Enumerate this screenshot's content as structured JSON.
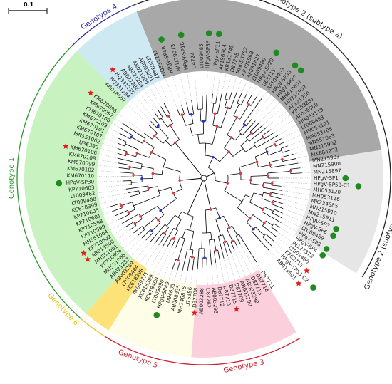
{
  "scale_bar": {
    "label": "0.1"
  },
  "sectors": [
    {
      "id": "genotype-2a",
      "from": -112,
      "to": -9,
      "fill": "#a8a8a8",
      "label": "Genotype 2 (subtype a)",
      "label_color": "#222222",
      "label_mid": -58,
      "arc_color": "#222222"
    },
    {
      "id": "genotype-2b",
      "from": -9,
      "to": 32,
      "fill": "#e6e6e6",
      "label": "Genotype 2 (subtype b)",
      "label_color": "#222222",
      "label_mid": 22,
      "arc_color": "#222222"
    },
    {
      "id": "genotype-3",
      "from": 59,
      "to": 94,
      "fill": "#fbd0dc",
      "label": "Genotype 3",
      "label_color": "#cc1f2f",
      "label_mid": 78,
      "arc_color": "#cc1f2f"
    },
    {
      "id": "genotype-5",
      "from": 94,
      "to": 122,
      "fill": "#fefde8",
      "label": "Genotype 5",
      "label_color": "#cc1f2f",
      "label_mid": 110,
      "arc_color": "#cc1f2f"
    },
    {
      "id": "genotype-6",
      "from": 122,
      "to": 131,
      "fill": "#fde27a",
      "label": "Genotype 6",
      "label_color": "#e6c619",
      "label_mid": 137,
      "arc_color": "#e6c619"
    },
    {
      "id": "genotype-1",
      "from": 131,
      "to": 225,
      "fill": "#c8f2c0",
      "label": "Genotype 1",
      "label_color": "#2a9a2a",
      "label_mid": 180,
      "arc_color": "#2a9a2a"
    },
    {
      "id": "genotype-4",
      "from": 225,
      "to": 248,
      "fill": "#cfe9f3",
      "label": "Genotype 4",
      "label_color": "#2727a8",
      "label_mid": 237,
      "arc_color": "#2727a8"
    }
  ],
  "leaves": [
    {
      "label": "HQ331233",
      "angle": -111,
      "mark": ""
    },
    {
      "label": "HPgV-SP48",
      "angle": -107,
      "mark": "circle"
    },
    {
      "label": "MH179073",
      "angle": -103,
      "mark": ""
    },
    {
      "label": "HPgV-SP18",
      "angle": -99,
      "mark": "circle"
    },
    {
      "label": "U4724",
      "angle": -95,
      "mark": ""
    },
    {
      "label": "LT009485",
      "angle": -91,
      "mark": ""
    },
    {
      "label": "HPgV-SP36",
      "angle": -88,
      "mark": "circle"
    },
    {
      "label": "HPgV-SP11",
      "angle": -84,
      "mark": "circle"
    },
    {
      "label": "AY196904",
      "angle": -81,
      "mark": ""
    },
    {
      "label": "KR131745",
      "angle": -78,
      "mark": ""
    },
    {
      "label": "D87255",
      "angle": -75,
      "mark": ""
    },
    {
      "label": "MH053782",
      "angle": -72,
      "mark": ""
    },
    {
      "label": "AF309968",
      "angle": -69,
      "mark": ""
    },
    {
      "label": "AF031827",
      "angle": -66,
      "mark": ""
    },
    {
      "label": "LT009489",
      "angle": -63,
      "mark": ""
    },
    {
      "label": "HPgV-SP29",
      "angle": -60,
      "mark": "circle"
    },
    {
      "label": "U63715",
      "angle": -57,
      "mark": ""
    },
    {
      "label": "AF104403",
      "angle": -54,
      "mark": ""
    },
    {
      "label": "HPgV-SP33",
      "angle": -51,
      "mark": "circle"
    },
    {
      "label": "HPgV-SP20",
      "angle": -48,
      "mark": "circle"
    },
    {
      "label": "MN410607",
      "angle": -45,
      "mark": ""
    },
    {
      "label": "MN715907",
      "angle": -42,
      "mark": ""
    },
    {
      "label": "AF121950",
      "angle": -39,
      "mark": ""
    },
    {
      "label": "KP259281",
      "angle": -36,
      "mark": ""
    },
    {
      "label": "AF006500",
      "angle": -33,
      "mark": ""
    },
    {
      "label": "MH053119",
      "angle": -30,
      "mark": ""
    },
    {
      "label": "LT009483",
      "angle": -27,
      "mark": ""
    },
    {
      "label": "MN053121",
      "angle": -24,
      "mark": ""
    },
    {
      "label": "MN053105",
      "angle": -21,
      "mark": ""
    },
    {
      "label": "MN551063",
      "angle": -18,
      "mark": ""
    },
    {
      "label": "MN215902",
      "angle": -15,
      "mark": ""
    },
    {
      "label": "MK684252",
      "angle": -12,
      "mark": ""
    },
    {
      "label": "MN215903",
      "angle": -9,
      "mark": ""
    },
    {
      "label": "MN215900",
      "angle": -6,
      "mark": ""
    },
    {
      "label": "MN215897",
      "angle": -3,
      "mark": ""
    },
    {
      "label": "HPgV-SP1",
      "angle": 0,
      "mark": "circle"
    },
    {
      "label": "HPgV-SP53-C1",
      "angle": 3,
      "mark": "circle"
    },
    {
      "label": "MH053120",
      "angle": 6,
      "mark": ""
    },
    {
      "label": "MH053116",
      "angle": 9,
      "mark": ""
    },
    {
      "label": "MK234885",
      "angle": 12,
      "mark": ""
    },
    {
      "label": "MN215910",
      "angle": 15,
      "mark": ""
    },
    {
      "label": "MN215911",
      "angle": 18,
      "mark": ""
    },
    {
      "label": "HPgV-SP3",
      "angle": 21,
      "mark": "circle"
    },
    {
      "label": "HPgV-SP6",
      "angle": 24,
      "mark": "circle"
    },
    {
      "label": "LT009489",
      "angle": 27,
      "mark": ""
    },
    {
      "label": "HPgV-SP8",
      "angle": 30,
      "mark": "circle"
    },
    {
      "label": "HPgV-SP4",
      "angle": 33,
      "mark": "circle"
    },
    {
      "label": "JN127373",
      "angle": 36,
      "mark": ""
    },
    {
      "label": "LT009486",
      "angle": 39,
      "mark": ""
    },
    {
      "label": "KF63715",
      "angle": 42,
      "mark": "star"
    },
    {
      "label": "HPgV-SP53-C2",
      "angle": 45,
      "mark": "circle"
    },
    {
      "label": "AB013501",
      "angle": 48,
      "mark": "star"
    },
    {
      "label": "D87711",
      "angle": 58,
      "mark": ""
    },
    {
      "label": "D87714",
      "angle": 61,
      "mark": ""
    },
    {
      "label": "D87713",
      "angle": 64,
      "mark": ""
    },
    {
      "label": "AB003292",
      "angle": 67,
      "mark": ""
    },
    {
      "label": "AB003290",
      "angle": 70,
      "mark": ""
    },
    {
      "label": "D87709",
      "angle": 73,
      "mark": ""
    },
    {
      "label": "D87715",
      "angle": 76,
      "mark": "star"
    },
    {
      "label": "D87710",
      "angle": 79,
      "mark": ""
    },
    {
      "label": "D87712",
      "angle": 82,
      "mark": ""
    },
    {
      "label": "AB003293",
      "angle": 85,
      "mark": ""
    },
    {
      "label": "D87262",
      "angle": 88,
      "mark": ""
    },
    {
      "label": "AB003288",
      "angle": 91,
      "mark": ""
    },
    {
      "label": "D87708",
      "angle": 94,
      "mark": "star"
    },
    {
      "label": "U75356",
      "angle": 97,
      "mark": ""
    },
    {
      "label": "MH748815",
      "angle": 100,
      "mark": ""
    },
    {
      "label": "AB008335",
      "angle": 103,
      "mark": ""
    },
    {
      "label": "U94695",
      "angle": 106,
      "mark": ""
    },
    {
      "label": "HPgV-SP49",
      "angle": 109,
      "mark": "circle"
    },
    {
      "label": "LT009490",
      "angle": 112,
      "mark": ""
    },
    {
      "label": "KC618400",
      "angle": 115,
      "mark": ""
    },
    {
      "label": "KC618399",
      "angle": 118,
      "mark": ""
    },
    {
      "label": "AY949771",
      "angle": 121,
      "mark": ""
    },
    {
      "label": "KC618398",
      "angle": 124,
      "mark": ""
    },
    {
      "label": "LT009484",
      "angle": 127,
      "mark": ""
    },
    {
      "label": "AB003289",
      "angle": 130,
      "mark": ""
    },
    {
      "label": "AB021287",
      "angle": 133,
      "mark": ""
    },
    {
      "label": "MN551065",
      "angle": 136,
      "mark": ""
    },
    {
      "label": "KP710606",
      "angle": 139,
      "mark": ""
    },
    {
      "label": "MN551061",
      "angle": 142,
      "mark": ""
    },
    {
      "label": "AB013500",
      "angle": 145,
      "mark": "star"
    },
    {
      "label": "KP710602",
      "angle": 148,
      "mark": "star"
    },
    {
      "label": "MN551064",
      "angle": 151,
      "mark": ""
    },
    {
      "label": "KP710599",
      "angle": 154,
      "mark": ""
    },
    {
      "label": "KP710598",
      "angle": 157,
      "mark": ""
    },
    {
      "label": "KP710601",
      "angle": 160,
      "mark": ""
    },
    {
      "label": "KP710605",
      "angle": 163,
      "mark": ""
    },
    {
      "label": "KC618399",
      "angle": 166,
      "mark": ""
    },
    {
      "label": "LT009488",
      "angle": 169,
      "mark": ""
    },
    {
      "label": "LT009482",
      "angle": 172,
      "mark": ""
    },
    {
      "label": "KP710603",
      "angle": 175,
      "mark": ""
    },
    {
      "label": "HPgV-SP30",
      "angle": 178,
      "mark": "circle"
    },
    {
      "label": "KM670110",
      "angle": 181,
      "mark": ""
    },
    {
      "label": "KM670102",
      "angle": 184,
      "mark": ""
    },
    {
      "label": "KM670099",
      "angle": 187,
      "mark": ""
    },
    {
      "label": "KM670108",
      "angle": 190,
      "mark": ""
    },
    {
      "label": "KM670106",
      "angle": 193,
      "mark": "star"
    },
    {
      "label": "U36380",
      "angle": 196,
      "mark": ""
    },
    {
      "label": "MN551062",
      "angle": 199,
      "mark": ""
    },
    {
      "label": "KM670107",
      "angle": 202,
      "mark": ""
    },
    {
      "label": "KM670101",
      "angle": 205,
      "mark": ""
    },
    {
      "label": "KM670109",
      "angle": 208,
      "mark": ""
    },
    {
      "label": "KM670100",
      "angle": 211,
      "mark": ""
    },
    {
      "label": "KM670097",
      "angle": 214,
      "mark": ""
    },
    {
      "label": "KM670096",
      "angle": 217,
      "mark": "star"
    },
    {
      "label": "AB018667",
      "angle": 224,
      "mark": ""
    },
    {
      "label": "HQ331234",
      "angle": 227,
      "mark": ""
    },
    {
      "label": "HQ331235",
      "angle": 230,
      "mark": "star"
    },
    {
      "label": "AB021286",
      "angle": 233,
      "mark": ""
    },
    {
      "label": "AB021284",
      "angle": 236,
      "mark": ""
    },
    {
      "label": "AB021285",
      "angle": 239,
      "mark": ""
    },
    {
      "label": "AB003291",
      "angle": 242,
      "mark": ""
    },
    {
      "label": "LT009487",
      "angle": 245,
      "mark": ""
    }
  ],
  "colors": {
    "circle": "#1f8a1f",
    "star": "#e31a1c",
    "node_red": "#e8383d",
    "node_blue": "#2536c8",
    "branch": "#000000"
  }
}
